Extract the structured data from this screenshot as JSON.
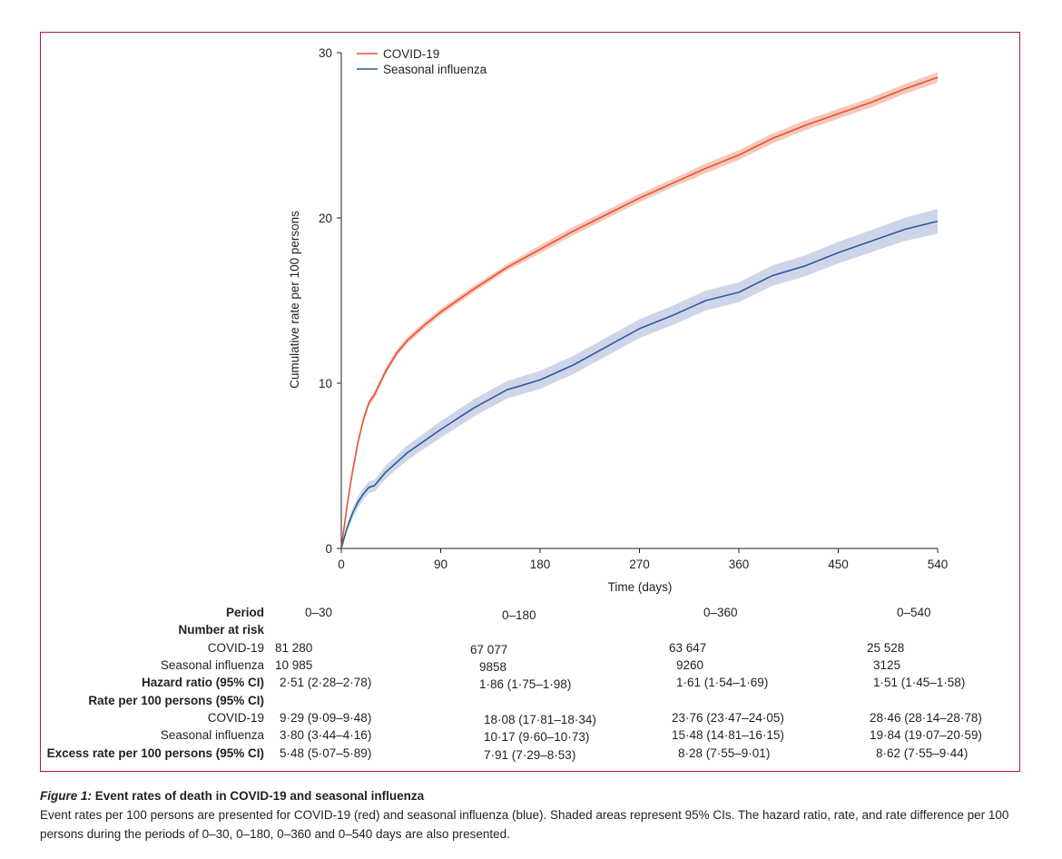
{
  "chart_data": {
    "type": "line",
    "xlabel": "Time (days)",
    "ylabel": "Cumulative rate per 100 persons",
    "xlim": [
      0,
      540
    ],
    "ylim": [
      0,
      30
    ],
    "xticks": [
      0,
      90,
      180,
      270,
      360,
      450,
      540
    ],
    "yticks": [
      0,
      10,
      20,
      30
    ],
    "legend_position": "top-left",
    "shaded_ci": true,
    "series": [
      {
        "name": "COVID-19",
        "color": "#e8512f",
        "ci_color": "#f6c9bc",
        "x": [
          0,
          5,
          10,
          15,
          20,
          25,
          30,
          40,
          50,
          60,
          75,
          90,
          120,
          150,
          180,
          210,
          240,
          270,
          300,
          330,
          360,
          390,
          420,
          450,
          480,
          510,
          540
        ],
        "y": [
          0,
          2.5,
          4.6,
          6.4,
          7.8,
          8.8,
          9.3,
          10.7,
          11.8,
          12.6,
          13.5,
          14.3,
          15.7,
          17.0,
          18.1,
          19.2,
          20.2,
          21.2,
          22.1,
          23.0,
          23.8,
          24.8,
          25.6,
          26.3,
          27.0,
          27.8,
          28.5
        ],
        "ci_halfwidth": [
          0,
          0.1,
          0.15,
          0.2,
          0.2,
          0.2,
          0.2,
          0.2,
          0.2,
          0.2,
          0.2,
          0.2,
          0.2,
          0.2,
          0.25,
          0.25,
          0.25,
          0.25,
          0.25,
          0.3,
          0.3,
          0.3,
          0.3,
          0.3,
          0.3,
          0.3,
          0.32
        ]
      },
      {
        "name": "Seasonal influenza",
        "color": "#2c5aa0",
        "ci_color": "#cfd5e8",
        "x": [
          0,
          5,
          10,
          15,
          20,
          25,
          30,
          40,
          50,
          60,
          75,
          90,
          120,
          150,
          180,
          210,
          240,
          270,
          300,
          330,
          360,
          390,
          420,
          450,
          480,
          510,
          540
        ],
        "y": [
          0,
          1.2,
          2.1,
          2.8,
          3.3,
          3.7,
          3.8,
          4.6,
          5.2,
          5.8,
          6.5,
          7.2,
          8.5,
          9.6,
          10.2,
          11.1,
          12.2,
          13.3,
          14.1,
          15.0,
          15.5,
          16.5,
          17.1,
          17.9,
          18.6,
          19.3,
          19.8
        ],
        "ci_halfwidth": [
          0,
          0.2,
          0.3,
          0.35,
          0.35,
          0.35,
          0.36,
          0.4,
          0.42,
          0.45,
          0.47,
          0.5,
          0.52,
          0.53,
          0.55,
          0.55,
          0.56,
          0.57,
          0.58,
          0.6,
          0.6,
          0.62,
          0.63,
          0.65,
          0.67,
          0.7,
          0.75
        ]
      }
    ]
  },
  "table": {
    "period_label": "Period",
    "at_risk_label": "Number at risk",
    "covid_label": "COVID-19",
    "flu_label": "Seasonal influenza",
    "hazard_label": "Hazard ratio (95% CI)",
    "rate_label": "Rate per 100 persons (95% CI)",
    "excess_label": "Excess rate per 100 persons (95% CI)",
    "periods": [
      "0–30",
      "0–180",
      "0–360",
      "0–540"
    ],
    "at_risk_covid": [
      "81 280",
      "67 077",
      "63 647",
      "25 528"
    ],
    "at_risk_flu": [
      "10 985",
      "9858",
      "9260",
      "3125"
    ],
    "hazard": [
      "2·51 (2·28–2·78)",
      "1·86 (1·75–1·98)",
      "1·61 (1·54–1·69)",
      "1·51 (1·45–1·58)"
    ],
    "rate_covid": [
      "9·29 (9·09–9·48)",
      "18·08 (17·81–18·34)",
      "23·76 (23·47–24·05)",
      "28·46 (28·14–28·78)"
    ],
    "rate_flu": [
      "3·80 (3·44–4·16)",
      "10·17 (9·60–10·73)",
      "15·48 (14·81–16·15)",
      "19·84 (19·07–20·59)"
    ],
    "excess": [
      "5·48 (5·07–5·89)",
      "7·91 (7·29–8·53)",
      "8·28 (7·55–9·01)",
      "8·62 (7·55–9·44)"
    ]
  },
  "caption": {
    "figure_label": "Figure 1:",
    "title": "Event rates of death in COVID-19 and seasonal influenza",
    "text": "Event rates per 100 persons are presented for COVID-19 (red) and seasonal influenza (blue). Shaded areas represent 95% CIs. The hazard ratio, rate, and rate difference per 100 persons during the periods of 0–30, 0–180, 0–360 and 0–540 days are also presented."
  }
}
